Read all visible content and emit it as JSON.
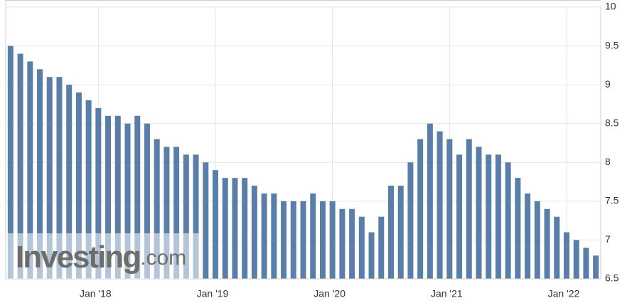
{
  "chart_data": {
    "type": "bar",
    "categories": [
      null,
      null,
      null,
      null,
      null,
      null,
      null,
      null,
      null,
      "Jan '18",
      null,
      null,
      null,
      null,
      null,
      null,
      null,
      null,
      null,
      null,
      null,
      "Jan '19",
      null,
      null,
      null,
      null,
      null,
      null,
      null,
      null,
      null,
      null,
      null,
      "Jan '20",
      null,
      null,
      null,
      null,
      null,
      null,
      null,
      null,
      null,
      null,
      null,
      "Jan '21",
      null,
      null,
      null,
      null,
      null,
      null,
      null,
      null,
      null,
      null,
      null,
      "Jan '22",
      null,
      null,
      null
    ],
    "values": [
      9.5,
      9.4,
      9.3,
      9.2,
      9.1,
      9.1,
      9.0,
      8.9,
      8.8,
      8.7,
      8.6,
      8.6,
      8.5,
      8.6,
      8.5,
      8.3,
      8.2,
      8.2,
      8.1,
      8.1,
      8.0,
      7.9,
      7.8,
      7.8,
      7.8,
      7.7,
      7.6,
      7.6,
      7.5,
      7.5,
      7.5,
      7.6,
      7.5,
      7.5,
      7.4,
      7.4,
      7.3,
      7.1,
      7.3,
      7.7,
      7.7,
      8.0,
      8.3,
      8.5,
      8.4,
      8.3,
      8.1,
      8.3,
      8.2,
      8.1,
      8.1,
      8.0,
      7.8,
      7.6,
      7.5,
      7.4,
      7.3,
      7.1,
      7.0,
      6.9,
      6.8
    ],
    "color": "#5b7ea7",
    "ylim": [
      6.5,
      10
    ],
    "yticks": [
      {
        "value": 6.5,
        "label": "6.5"
      },
      7,
      7.5,
      8,
      8.5,
      9,
      9.5,
      10
    ],
    "grid": true,
    "watermark": {
      "brand": "Investing",
      "suffix": ".com"
    }
  }
}
